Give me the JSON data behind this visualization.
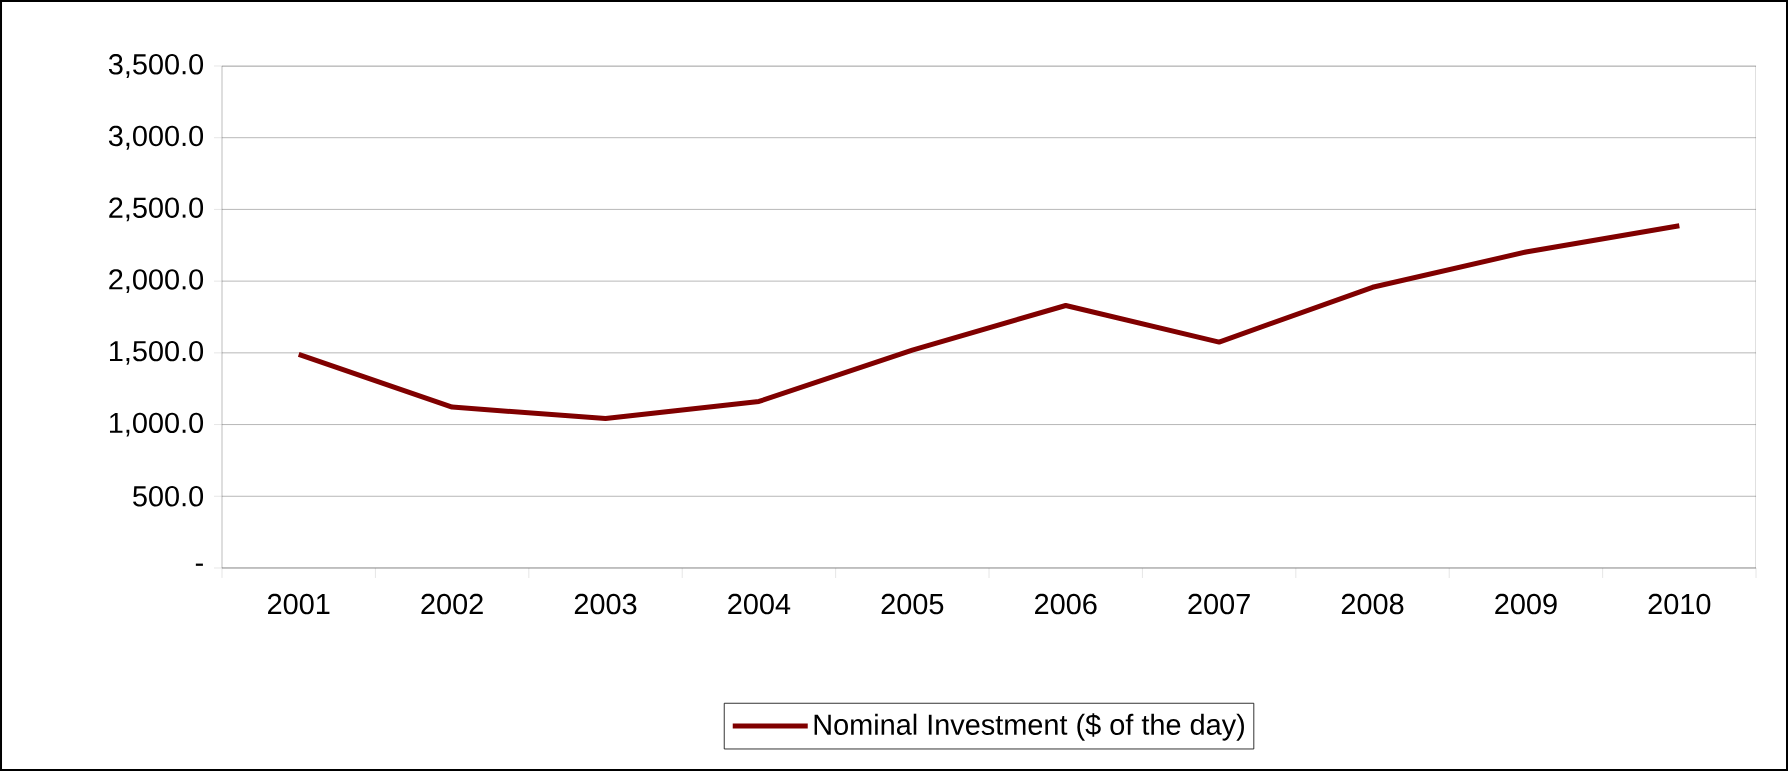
{
  "chart_data": {
    "type": "line",
    "categories": [
      "2001",
      "2002",
      "2003",
      "2004",
      "2005",
      "2006",
      "2007",
      "2008",
      "2009",
      "2010"
    ],
    "series": [
      {
        "name": "Nominal Investment ($ of the day)",
        "color": "#800000",
        "values": [
          1490,
          1122,
          1042,
          1161,
          1519,
          1830,
          1575,
          1957,
          2203,
          2386
        ]
      }
    ],
    "ylim": [
      0,
      3500
    ],
    "yticks": [
      {
        "value": 0,
        "label": "-"
      },
      {
        "value": 500,
        "label": "500.0"
      },
      {
        "value": 1000,
        "label": "1,000.0"
      },
      {
        "value": 1500,
        "label": "1,500.0"
      },
      {
        "value": 2000,
        "label": "2,000.0"
      },
      {
        "value": 2500,
        "label": "2,500.0"
      },
      {
        "value": 3000,
        "label": "3,000.0"
      },
      {
        "value": 3500,
        "label": "3,500.0"
      }
    ],
    "grid": "y",
    "legend": "bottom"
  }
}
